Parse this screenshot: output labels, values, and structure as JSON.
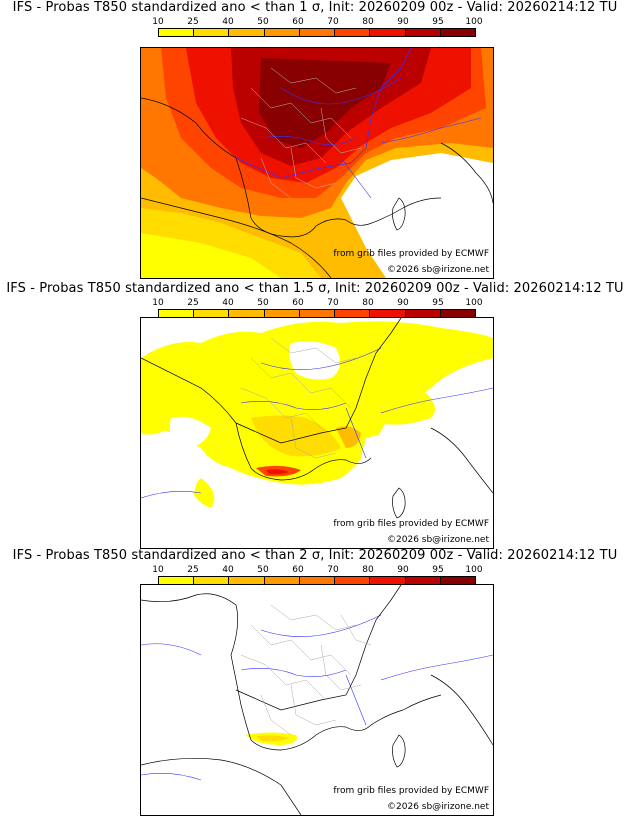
{
  "legend": {
    "ticks": [
      "10",
      "25",
      "40",
      "50",
      "60",
      "70",
      "80",
      "90",
      "95",
      "100"
    ],
    "colors": [
      "#ffff00",
      "#ffdd00",
      "#ffbb00",
      "#ff9900",
      "#ff7700",
      "#ff4400",
      "#ee1100",
      "#bb0000",
      "#880000"
    ]
  },
  "panels": [
    {
      "title": "IFS - Probas T850  standardized ano < than 1 σ, Init: 20260209 00z - Valid: 20260214:12 TU",
      "source": "from grib files provided by ECMWF",
      "copyright": "©2026 sb@irizone.net",
      "level": "high"
    },
    {
      "title": "IFS - Probas T850  standardized ano < than 1.5 σ, Init: 20260209 00z - Valid: 20260214:12 TU",
      "source": "from grib files provided by ECMWF",
      "copyright": "©2026 sb@irizone.net",
      "level": "medium"
    },
    {
      "title": "IFS - Probas T850  standardized ano < than 2 σ, Init: 20260209 00z - Valid: 20260214:12 TU",
      "source": "from grib files provided by ECMWF",
      "copyright": "©2026 sb@irizone.net",
      "level": "low"
    }
  ],
  "map_colors": {
    "coast": "#000000",
    "border": "#000000",
    "rivers": "#1a1aff",
    "departments": "#9a9a9a",
    "land_empty": "#ffffff"
  }
}
